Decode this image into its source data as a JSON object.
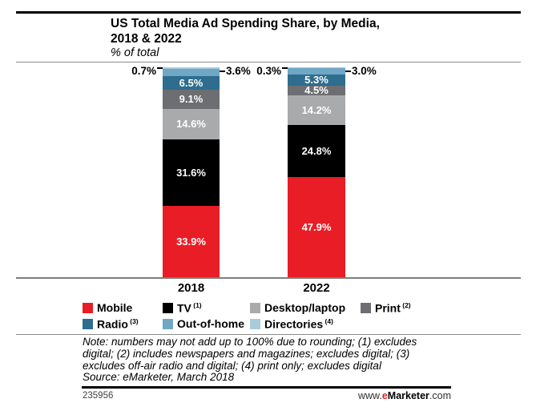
{
  "title": {
    "line1": "US Total Media Ad Spending Share, by Media,",
    "line2": "2018 & 2022",
    "subtitle": "% of total",
    "color": "#E91D25"
  },
  "chart_data": {
    "type": "stacked-bar",
    "categories": [
      "2018",
      "2022"
    ],
    "unit": "%",
    "ylim": [
      0,
      100
    ],
    "value_label_format": "one-decimal-percent",
    "series": [
      {
        "name": "Mobile",
        "color": "#E91D25",
        "values": [
          33.9,
          47.9
        ],
        "label_inside": true
      },
      {
        "name": "TV",
        "color": "#000000",
        "values": [
          31.6,
          24.8
        ],
        "label_inside": true
      },
      {
        "name": "Desktop/laptop",
        "color": "#A8AAAC",
        "values": [
          14.6,
          14.2
        ],
        "label_inside": true
      },
      {
        "name": "Print",
        "color": "#6D6E71",
        "values": [
          9.1,
          4.5
        ],
        "label_inside": true
      },
      {
        "name": "Radio",
        "color": "#2E6D8E",
        "values": [
          6.5,
          5.3
        ],
        "label_inside": true
      },
      {
        "name": "Out-of-home",
        "color": "#6FA7C5",
        "values": [
          3.6,
          3.0
        ],
        "callout": "right"
      },
      {
        "name": "Directories",
        "color": "#A9CBDC",
        "values": [
          0.7,
          0.3
        ],
        "callout": "left"
      }
    ],
    "legend_position": "bottom"
  },
  "legend": {
    "items": [
      {
        "label": "Mobile",
        "sup": "",
        "color": "#E91D25",
        "col": 0,
        "row": 0
      },
      {
        "label": "TV",
        "sup": "(1)",
        "color": "#000000",
        "col": 1,
        "row": 0
      },
      {
        "label": "Desktop/laptop",
        "sup": "",
        "color": "#A8AAAC",
        "col": 2,
        "row": 0
      },
      {
        "label": "Print",
        "sup": "(2)",
        "color": "#6D6E71",
        "col": 3,
        "row": 0
      },
      {
        "label": "Radio",
        "sup": "(3)",
        "color": "#2E6D8E",
        "col": 0,
        "row": 1
      },
      {
        "label": "Out-of-home",
        "sup": "",
        "color": "#6FA7C5",
        "col": 1,
        "row": 1
      },
      {
        "label": "Directories",
        "sup": "(4)",
        "color": "#A9CBDC",
        "col": 2,
        "row": 1
      }
    ]
  },
  "note_lines": [
    "Note: numbers may not add up to 100% due to rounding; (1) excludes",
    "digital; (2) includes newspapers and magazines; excludes digital; (3)",
    "excludes off-air radio and digital; (4) print only; excludes digital"
  ],
  "source": "Source: eMarketer, March 2018",
  "footer": {
    "chart_id": "235956",
    "site_prefix": "www.",
    "site_e": "e",
    "site_name": "Marketer",
    "site_suffix": ".com"
  }
}
